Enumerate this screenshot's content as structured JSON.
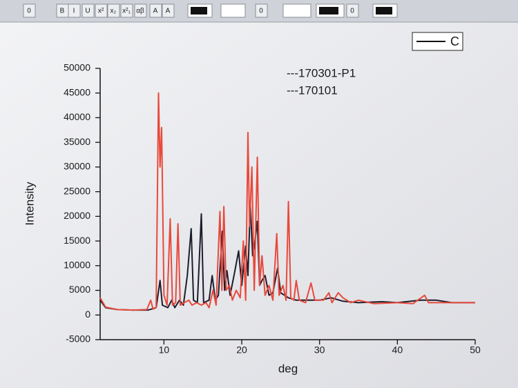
{
  "toolbar": {
    "items": [
      "0",
      "B",
      "I",
      "U",
      "x²",
      "x₂",
      "x²₁",
      "αβ",
      "A",
      "A",
      "0",
      "0"
    ]
  },
  "chart_data": {
    "type": "line",
    "x_label": "deg",
    "y_label": "Intensity",
    "xlim": [
      1.8,
      50
    ],
    "xticks": [
      10,
      20,
      30,
      40,
      50
    ],
    "ylim": [
      -5000,
      50000
    ],
    "yticks": [
      -5000,
      0,
      5000,
      10000,
      15000,
      20000,
      25000,
      30000,
      35000,
      40000,
      45000,
      50000
    ],
    "legend_box_label": "C",
    "series": [
      {
        "name": "---170101",
        "color": "#1c1c2c",
        "x": [
          1.8,
          2.5,
          4,
          6,
          8,
          9.0,
          9.5,
          9.8,
          10.5,
          11.0,
          11.4,
          12.0,
          12.5,
          13.0,
          13.5,
          13.8,
          14.3,
          14.8,
          15.1,
          15.8,
          16.2,
          16.6,
          17.0,
          17.5,
          17.8,
          18.1,
          18.5,
          19.0,
          19.6,
          20.0,
          20.5,
          20.8,
          21.1,
          21.4,
          21.7,
          22.0,
          22.3,
          22.6,
          23.0,
          23.5,
          24.0,
          24.6,
          25.0,
          26.0,
          27.0,
          28.5,
          30.0,
          31.5,
          33.0,
          35.0,
          38.0,
          40.0,
          43.0,
          45.0,
          47.0,
          50.0
        ],
        "values": [
          3000,
          1500,
          1100,
          1000,
          1000,
          1500,
          7000,
          2000,
          1500,
          3000,
          1500,
          3000,
          2000,
          8000,
          17500,
          3000,
          2500,
          20500,
          2500,
          3000,
          8000,
          3000,
          4000,
          17000,
          5000,
          9000,
          4000,
          8000,
          13000,
          6000,
          14000,
          8000,
          22500,
          12000,
          15000,
          19000,
          6000,
          7000,
          8000,
          4000,
          4500,
          9500,
          4500,
          3500,
          3000,
          3000,
          3000,
          3500,
          2800,
          2500,
          2700,
          2500,
          3000,
          3000,
          2500,
          2500
        ]
      },
      {
        "name": "---170301-P1",
        "color": "#e8493c",
        "x": [
          1.8,
          2.5,
          4,
          6,
          7.8,
          8.3,
          8.6,
          9.0,
          9.3,
          9.5,
          9.7,
          10.0,
          10.4,
          10.8,
          11.1,
          11.5,
          11.8,
          12.1,
          12.6,
          13.2,
          13.6,
          14.2,
          14.8,
          15.4,
          15.8,
          16.3,
          16.7,
          17.2,
          17.45,
          17.7,
          18.0,
          18.4,
          18.8,
          19.3,
          19.8,
          20.2,
          20.5,
          20.8,
          21.0,
          21.3,
          21.6,
          22.0,
          22.3,
          22.6,
          23.0,
          23.5,
          24.0,
          24.5,
          24.8,
          25.3,
          25.7,
          26.0,
          26.3,
          26.7,
          27.0,
          27.4,
          28.2,
          28.9,
          29.4,
          30.5,
          31.2,
          31.6,
          32.4,
          33.0,
          34.0,
          35.0,
          37.0,
          40.0,
          42.0,
          43.5,
          44.0,
          46.0,
          48.0,
          50.0
        ],
        "values": [
          3500,
          1600,
          1100,
          1000,
          1100,
          3000,
          1200,
          1500,
          45000,
          30000,
          38000,
          4000,
          2000,
          19500,
          2000,
          2500,
          18500,
          2000,
          2500,
          3000,
          2000,
          2500,
          2000,
          2500,
          1500,
          5000,
          2000,
          21000,
          5000,
          22000,
          5000,
          6000,
          3000,
          5000,
          3500,
          15000,
          3000,
          37000,
          18000,
          30000,
          5000,
          32000,
          6000,
          12000,
          4000,
          6000,
          3000,
          16500,
          4000,
          6000,
          3000,
          23000,
          3500,
          3000,
          7000,
          3000,
          2500,
          6500,
          3000,
          3000,
          4500,
          2500,
          4500,
          3500,
          2500,
          3000,
          2300,
          2500,
          2300,
          4000,
          2500,
          2500,
          2500,
          2500
        ]
      }
    ]
  }
}
